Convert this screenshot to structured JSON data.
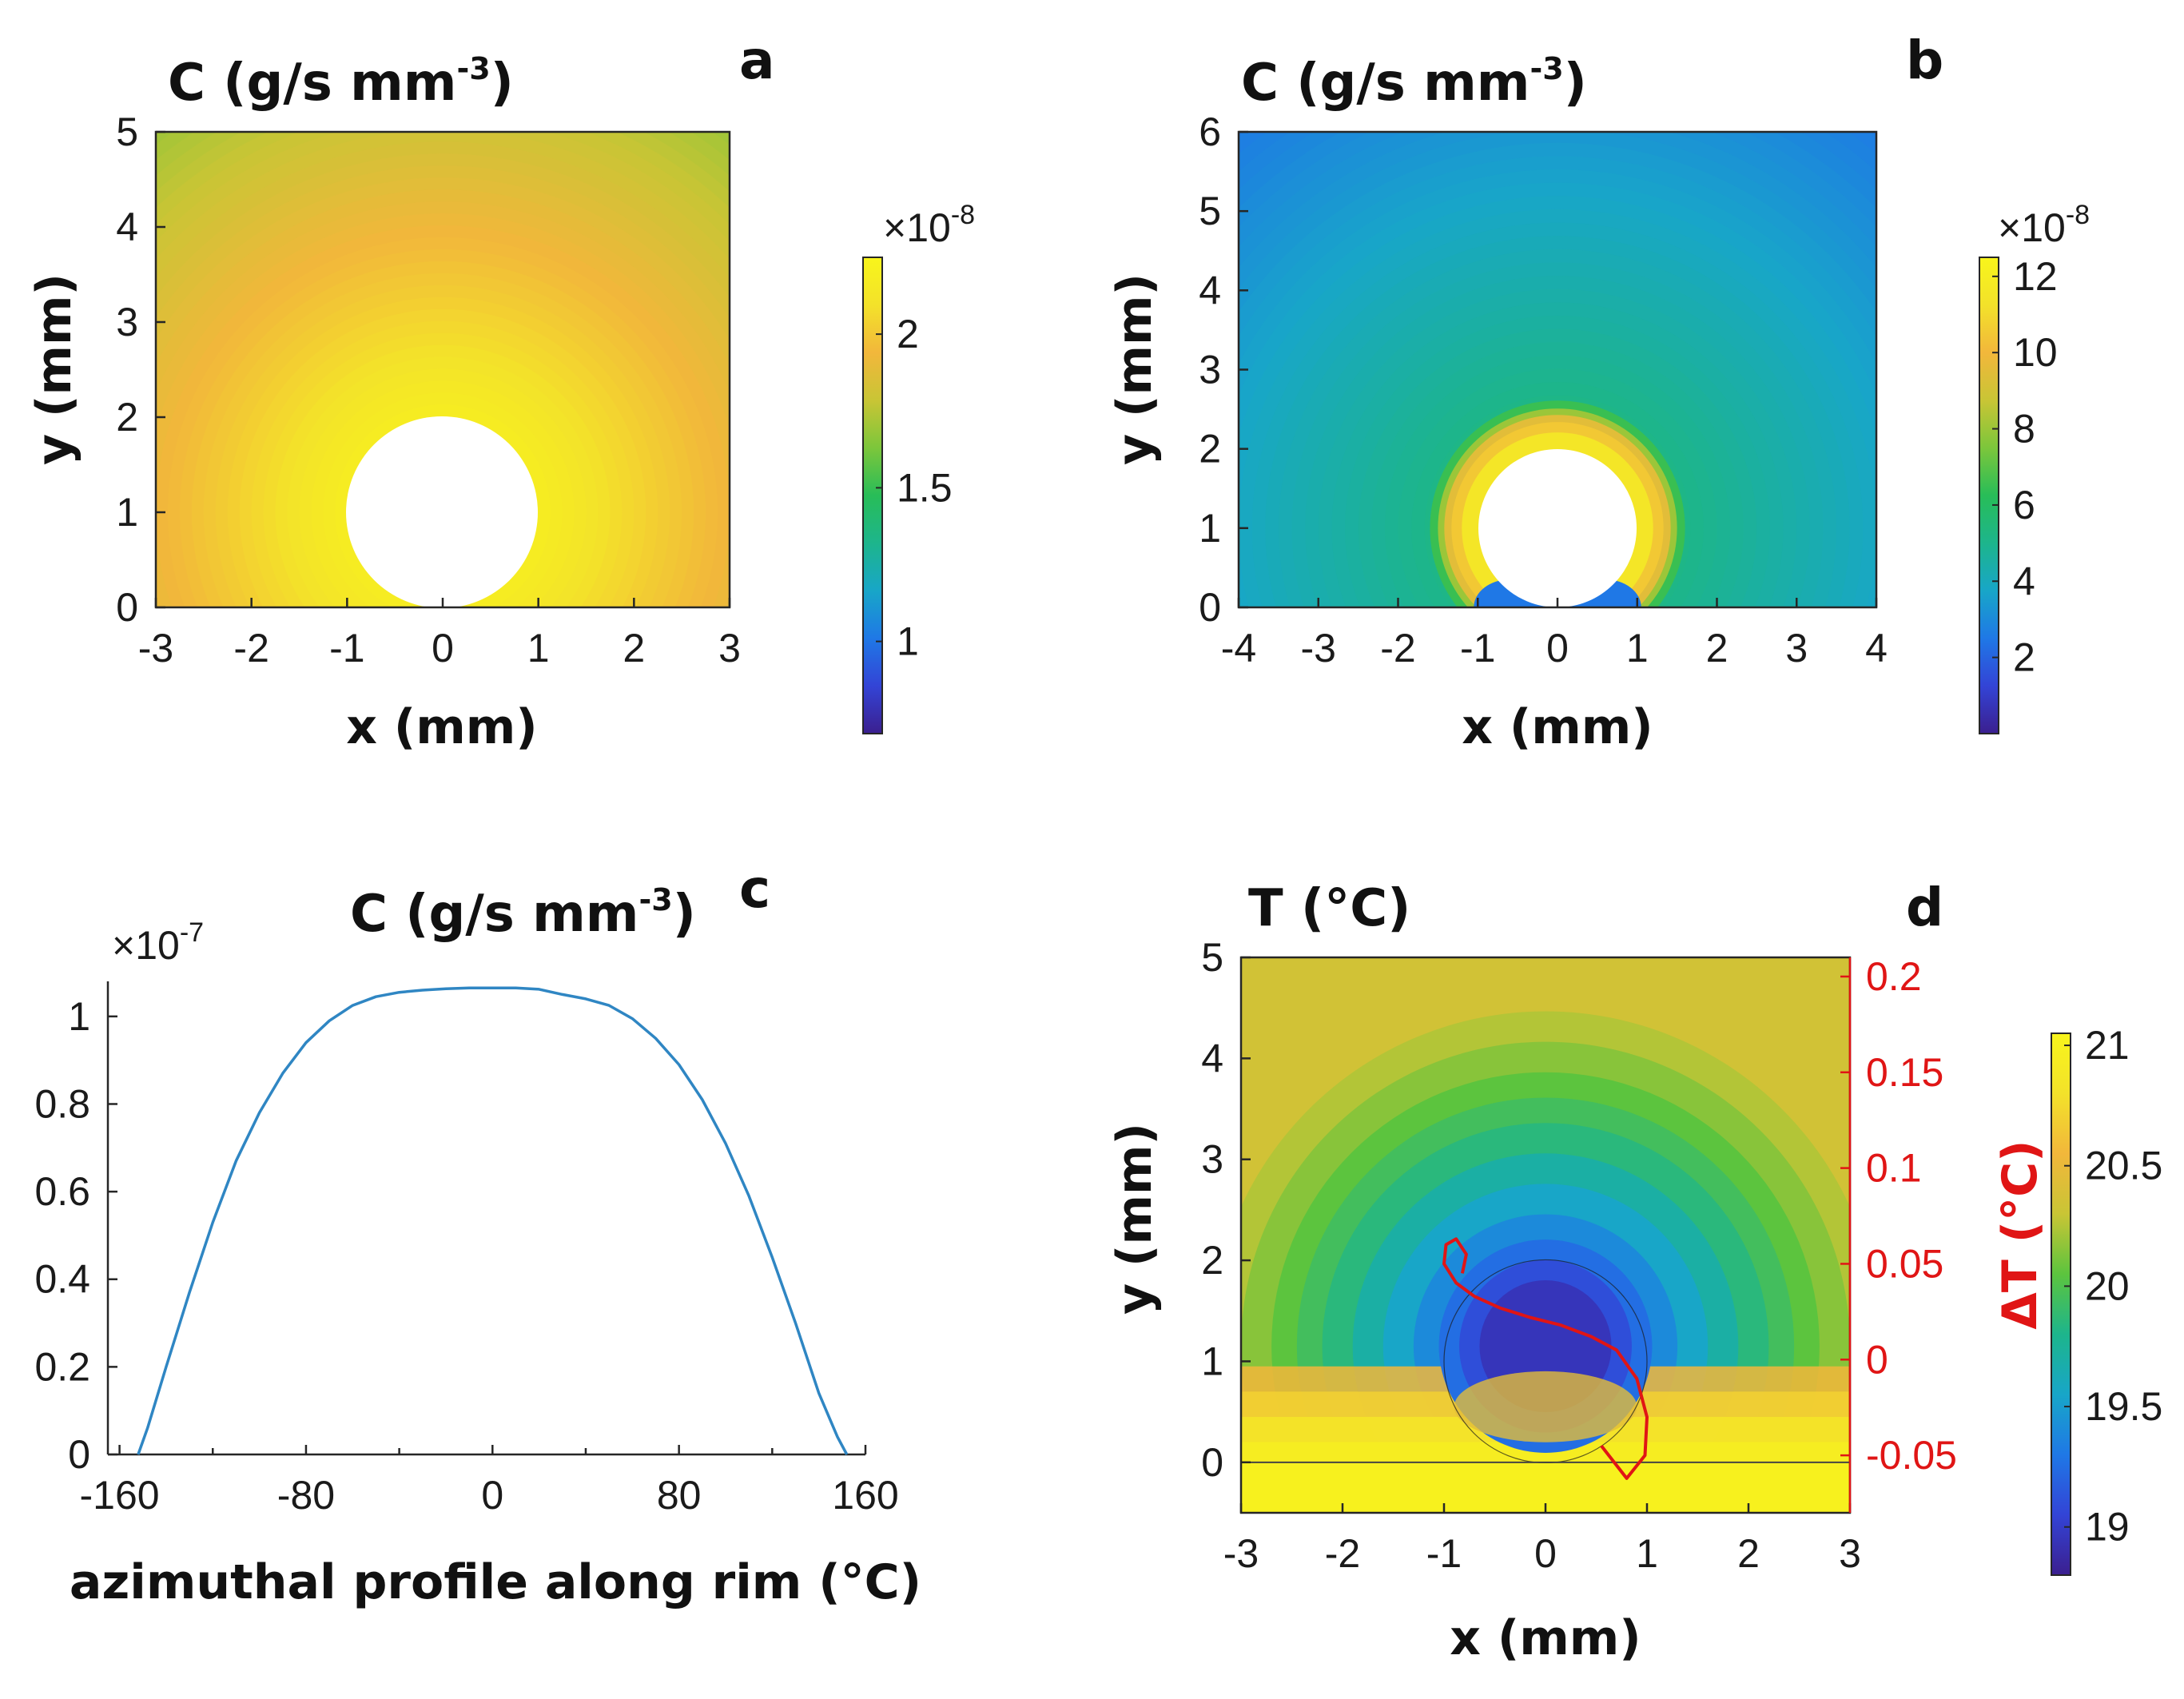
{
  "colors": {
    "viridis_like": [
      "#3b1f8f",
      "#3344d6",
      "#1f78e6",
      "#18a6c8",
      "#1db58c",
      "#28bd58",
      "#7cc63b",
      "#c9c535",
      "#f2b73b",
      "#f3e22a",
      "#f8f51b"
    ],
    "temp_map": [
      "#3b1f8f",
      "#3344d6",
      "#1f78e6",
      "#18a6c8",
      "#1db58c",
      "#5cc43e",
      "#c9c535",
      "#f2b73b",
      "#f3e22a",
      "#f8f51b"
    ],
    "line_blue": "#2f86c3",
    "red": "#e01515"
  },
  "chart_data": [
    {
      "panel": "a",
      "type": "heatmap",
      "title": "C (g/s mm",
      "title_sup": "-3",
      "title_close": ")",
      "xlabel": "x (mm)",
      "ylabel": "y (mm)",
      "xlim": [
        -3,
        3
      ],
      "ylim": [
        0,
        5
      ],
      "xticks": [
        "-3",
        "-2",
        "-1",
        "0",
        "1",
        "2",
        "3"
      ],
      "yticks": [
        "0",
        "1",
        "2",
        "3",
        "4",
        "5"
      ],
      "obstacle": {
        "cx": 0,
        "cy": 1,
        "r": 1
      },
      "field": {
        "max_value": 2.2,
        "min_value": 1.6,
        "decay_radius": 5
      },
      "colorbar": {
        "min": 0.7,
        "max": 2.25,
        "exponent": "×10",
        "exponent_sup": "-8",
        "ticks": [
          "1",
          "1.5",
          "2"
        ],
        "tick_values": [
          1,
          1.5,
          2
        ]
      }
    },
    {
      "panel": "b",
      "type": "heatmap",
      "title": "C (g/s mm",
      "title_sup": "-3",
      "title_close": ")",
      "xlabel": "x (mm)",
      "ylabel": "y (mm)",
      "xlim": [
        -4,
        4
      ],
      "ylim": [
        0,
        6
      ],
      "xticks": [
        "-4",
        "-3",
        "-2",
        "-1",
        "0",
        "1",
        "2",
        "3",
        "4"
      ],
      "yticks": [
        "0",
        "1",
        "2",
        "3",
        "4",
        "5",
        "6"
      ],
      "obstacle": {
        "cx": 0,
        "cy": 1,
        "r": 1
      },
      "field": {
        "max_value": 12,
        "halo_value": 10,
        "background_value": 3
      },
      "colorbar": {
        "min": 0,
        "max": 12.5,
        "exponent": "×10",
        "exponent_sup": "-8",
        "ticks": [
          "2",
          "4",
          "6",
          "8",
          "10",
          "12"
        ],
        "tick_values": [
          2,
          4,
          6,
          8,
          10,
          12
        ]
      }
    },
    {
      "panel": "c",
      "type": "line",
      "title": "C (g/s mm",
      "title_sup": "-3",
      "title_close": ")",
      "xlabel": "azimuthal profile along rim (°C)",
      "ylabel": "",
      "xlim": [
        -165,
        160
      ],
      "ylim": [
        0,
        1.08
      ],
      "exponent": "×10",
      "exponent_sup": "-7",
      "xticks": [
        "-160",
        "-80",
        "0",
        "80",
        "160"
      ],
      "xtick_values": [
        -160,
        -80,
        0,
        80,
        160
      ],
      "yticks": [
        "0",
        "0.2",
        "0.4",
        "0.6",
        "0.8",
        "1"
      ],
      "ytick_values": [
        0,
        0.2,
        0.4,
        0.6,
        0.8,
        1
      ],
      "series": [
        {
          "x": [
            -152,
            -148,
            -140,
            -130,
            -120,
            -110,
            -100,
            -90,
            -80,
            -70,
            -60,
            -50,
            -40,
            -30,
            -20,
            -10,
            0,
            10,
            20,
            30,
            40,
            50,
            60,
            70,
            80,
            90,
            100,
            110,
            120,
            130,
            140,
            148,
            152
          ],
          "y": [
            0.0,
            0.06,
            0.2,
            0.37,
            0.53,
            0.67,
            0.78,
            0.87,
            0.94,
            0.99,
            1.025,
            1.045,
            1.055,
            1.06,
            1.063,
            1.065,
            1.065,
            1.065,
            1.062,
            1.05,
            1.04,
            1.025,
            0.995,
            0.95,
            0.89,
            0.81,
            0.71,
            0.59,
            0.45,
            0.3,
            0.14,
            0.04,
            0.0
          ]
        }
      ]
    },
    {
      "panel": "d",
      "type": "heatmap",
      "title": "T (°C)",
      "xlabel": "x (mm)",
      "ylabel": "y (mm)",
      "y2label": "ΔT (°C)",
      "xlim": [
        -3,
        3
      ],
      "ylim": [
        -0.5,
        5
      ],
      "y2lim": [
        -0.08,
        0.21
      ],
      "xticks": [
        "-3",
        "-2",
        "-1",
        "0",
        "1",
        "2",
        "3"
      ],
      "yticks": [
        "0",
        "1",
        "2",
        "3",
        "4",
        "5"
      ],
      "y2ticks": [
        "-0.05",
        "0",
        "0.05",
        "0.1",
        "0.15",
        "0.2"
      ],
      "y2tick_values": [
        -0.05,
        0,
        0.05,
        0.1,
        0.15,
        0.2
      ],
      "obstacle": {
        "cx": 0,
        "cy": 1,
        "r": 1
      },
      "baseline_y": 0,
      "colorbar": {
        "min": 18.8,
        "max": 21.05,
        "ticks": [
          "19",
          "19.5",
          "20",
          "20.5",
          "21"
        ],
        "tick_values": [
          19,
          19.5,
          20,
          20.5,
          21
        ]
      },
      "delta_T_curve": {
        "x": [
          0.55,
          0.8,
          0.98,
          1.0,
          0.9,
          0.7,
          0.45,
          0.15,
          -0.15,
          -0.45,
          -0.7,
          -0.88,
          -1.0,
          -0.98,
          -0.88,
          -0.78,
          -0.82
        ],
        "y": [
          -0.045,
          -0.062,
          -0.05,
          -0.03,
          -0.01,
          0.005,
          0.012,
          0.018,
          0.022,
          0.027,
          0.033,
          0.04,
          0.05,
          0.06,
          0.063,
          0.055,
          0.045
        ]
      }
    }
  ]
}
